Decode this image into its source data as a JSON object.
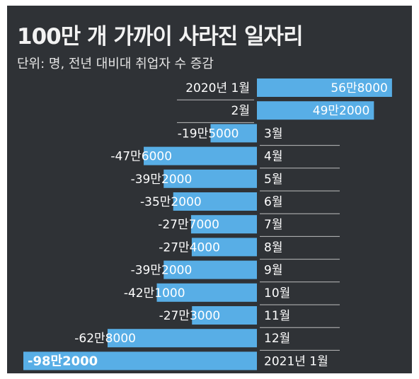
{
  "header": {
    "title": "100만 개 가까이 사라진 일자리",
    "subtitle": "단위: 명, 전년 대비대 취업자 수 증감"
  },
  "colors": {
    "background": "#2f3236",
    "bar": "#58aee6",
    "text": "#ffffff"
  },
  "chart_data": {
    "type": "bar",
    "orientation": "horizontal",
    "title": "100만 개 가까이 사라진 일자리",
    "subtitle": "단위: 명, 전년 대비대 취업자 수 증감",
    "categories": [
      "2020년 1월",
      "2월",
      "3월",
      "4월",
      "5월",
      "6월",
      "7월",
      "8월",
      "9월",
      "10월",
      "11월",
      "12월",
      "2021년 1월"
    ],
    "values": [
      568000,
      492000,
      -195000,
      -476000,
      -392000,
      -352000,
      -277000,
      -274000,
      -392000,
      -421000,
      -273000,
      -628000,
      -982000
    ],
    "value_labels": [
      "56만8000",
      "49만2000",
      "-19만5000",
      "-47만6000",
      "-39만2000",
      "-35만2000",
      "-27만7000",
      "-27만4000",
      "-39만2000",
      "-42만1000",
      "-27만3000",
      "-62만8000",
      "-98만2000"
    ]
  }
}
